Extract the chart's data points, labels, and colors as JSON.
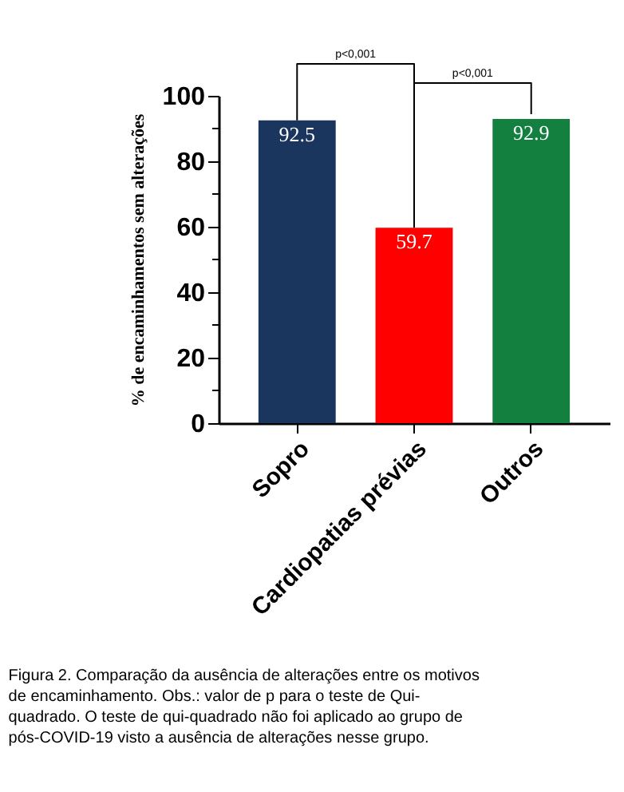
{
  "chart_data": {
    "type": "bar",
    "ylabel": "% de encaminhamentos sem alterações",
    "categories": [
      "Sopro",
      "Cardiopatias prévias",
      "Outros"
    ],
    "values": [
      92.5,
      59.7,
      92.9
    ],
    "colors": [
      "#1a355e",
      "#fe0000",
      "#138040"
    ],
    "ylim": [
      0,
      100
    ],
    "yticks": [
      0,
      20,
      40,
      60,
      80,
      100
    ],
    "data_labels": true,
    "grid": false,
    "annotations": [
      "p<0,001",
      "p<0,001",
      "Figura 2. Comparação da ausência de alterações entre os motivos de encaminhamento. Obs.: valor de p para o teste de Qui-quadrado. O teste de qui-quadrado não foi aplicado ao grupo de pós-COVID-19 visto a ausência de alterações nesse grupo."
    ]
  }
}
